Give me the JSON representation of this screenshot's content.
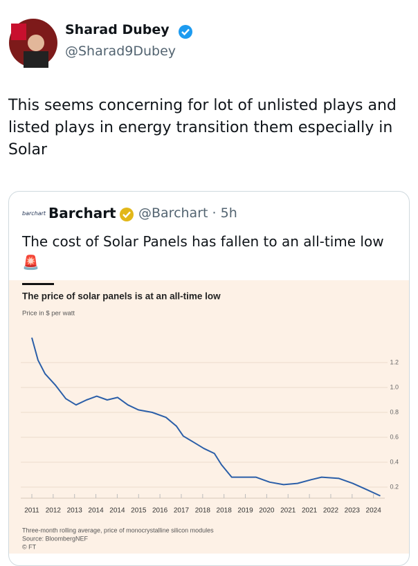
{
  "tweet": {
    "name": "Sharad Dubey",
    "handle": "@Sharad9Dubey",
    "text": "This seems concerning for lot of unlisted plays and listed plays in energy transition them especially in Solar"
  },
  "quote": {
    "logo": "barchart",
    "name": "Barchart",
    "handle": "@Barchart",
    "separator": "·",
    "time": "5h",
    "text": "The cost of Solar Panels has fallen to an all-time low",
    "emoji": "🚨"
  },
  "chart_data": {
    "type": "line",
    "title": "The price of solar panels is at an all-time low",
    "subtitle": "Price in $ per watt",
    "footnote": "Three-month rolling average, price of monocrystalline silicon modules",
    "source": "Source: BloombergNEF",
    "credit": "© FT",
    "x": [
      0,
      0.29,
      0.62,
      1.1,
      1.59,
      2.07,
      2.56,
      3.04,
      3.53,
      4.02,
      4.5,
      4.99,
      5.64,
      6.28,
      6.77,
      7.09,
      7.58,
      8.06,
      8.55,
      8.88,
      9.36,
      9.85,
      10.49,
      11.14,
      11.79,
      12.44,
      13.09,
      13.57,
      14.38,
      15.03,
      15.68,
      16.32
    ],
    "values": [
      1.4,
      1.22,
      1.11,
      1.02,
      0.91,
      0.86,
      0.9,
      0.93,
      0.9,
      0.92,
      0.86,
      0.82,
      0.8,
      0.76,
      0.69,
      0.61,
      0.56,
      0.51,
      0.47,
      0.38,
      0.28,
      0.28,
      0.28,
      0.24,
      0.22,
      0.23,
      0.26,
      0.28,
      0.27,
      0.23,
      0.18,
      0.13
    ],
    "color": "#2a5ea8",
    "xlim": [
      0,
      16.4
    ],
    "xticks": [
      {
        "value": 0,
        "label": "2011"
      },
      {
        "value": 1,
        "label": "2012"
      },
      {
        "value": 2,
        "label": "2013"
      },
      {
        "value": 3,
        "label": "2014"
      },
      {
        "value": 4,
        "label": "2014"
      },
      {
        "value": 5,
        "label": "2015"
      },
      {
        "value": 6,
        "label": "2016"
      },
      {
        "value": 7,
        "label": "2017"
      },
      {
        "value": 8,
        "label": "2018"
      },
      {
        "value": 9,
        "label": "2018"
      },
      {
        "value": 10,
        "label": "2019"
      },
      {
        "value": 11,
        "label": "2020"
      },
      {
        "value": 12,
        "label": "2021"
      },
      {
        "value": 13,
        "label": "2021"
      },
      {
        "value": 14,
        "label": "2022"
      },
      {
        "value": 15,
        "label": "2023"
      },
      {
        "value": 16,
        "label": "2024"
      }
    ],
    "ylim": [
      0.1,
      1.45
    ],
    "yticks": [
      0.2,
      0.4,
      0.6,
      0.8,
      {
        "value": 1,
        "label": "1.0"
      },
      1.2
    ],
    "grid": true
  }
}
